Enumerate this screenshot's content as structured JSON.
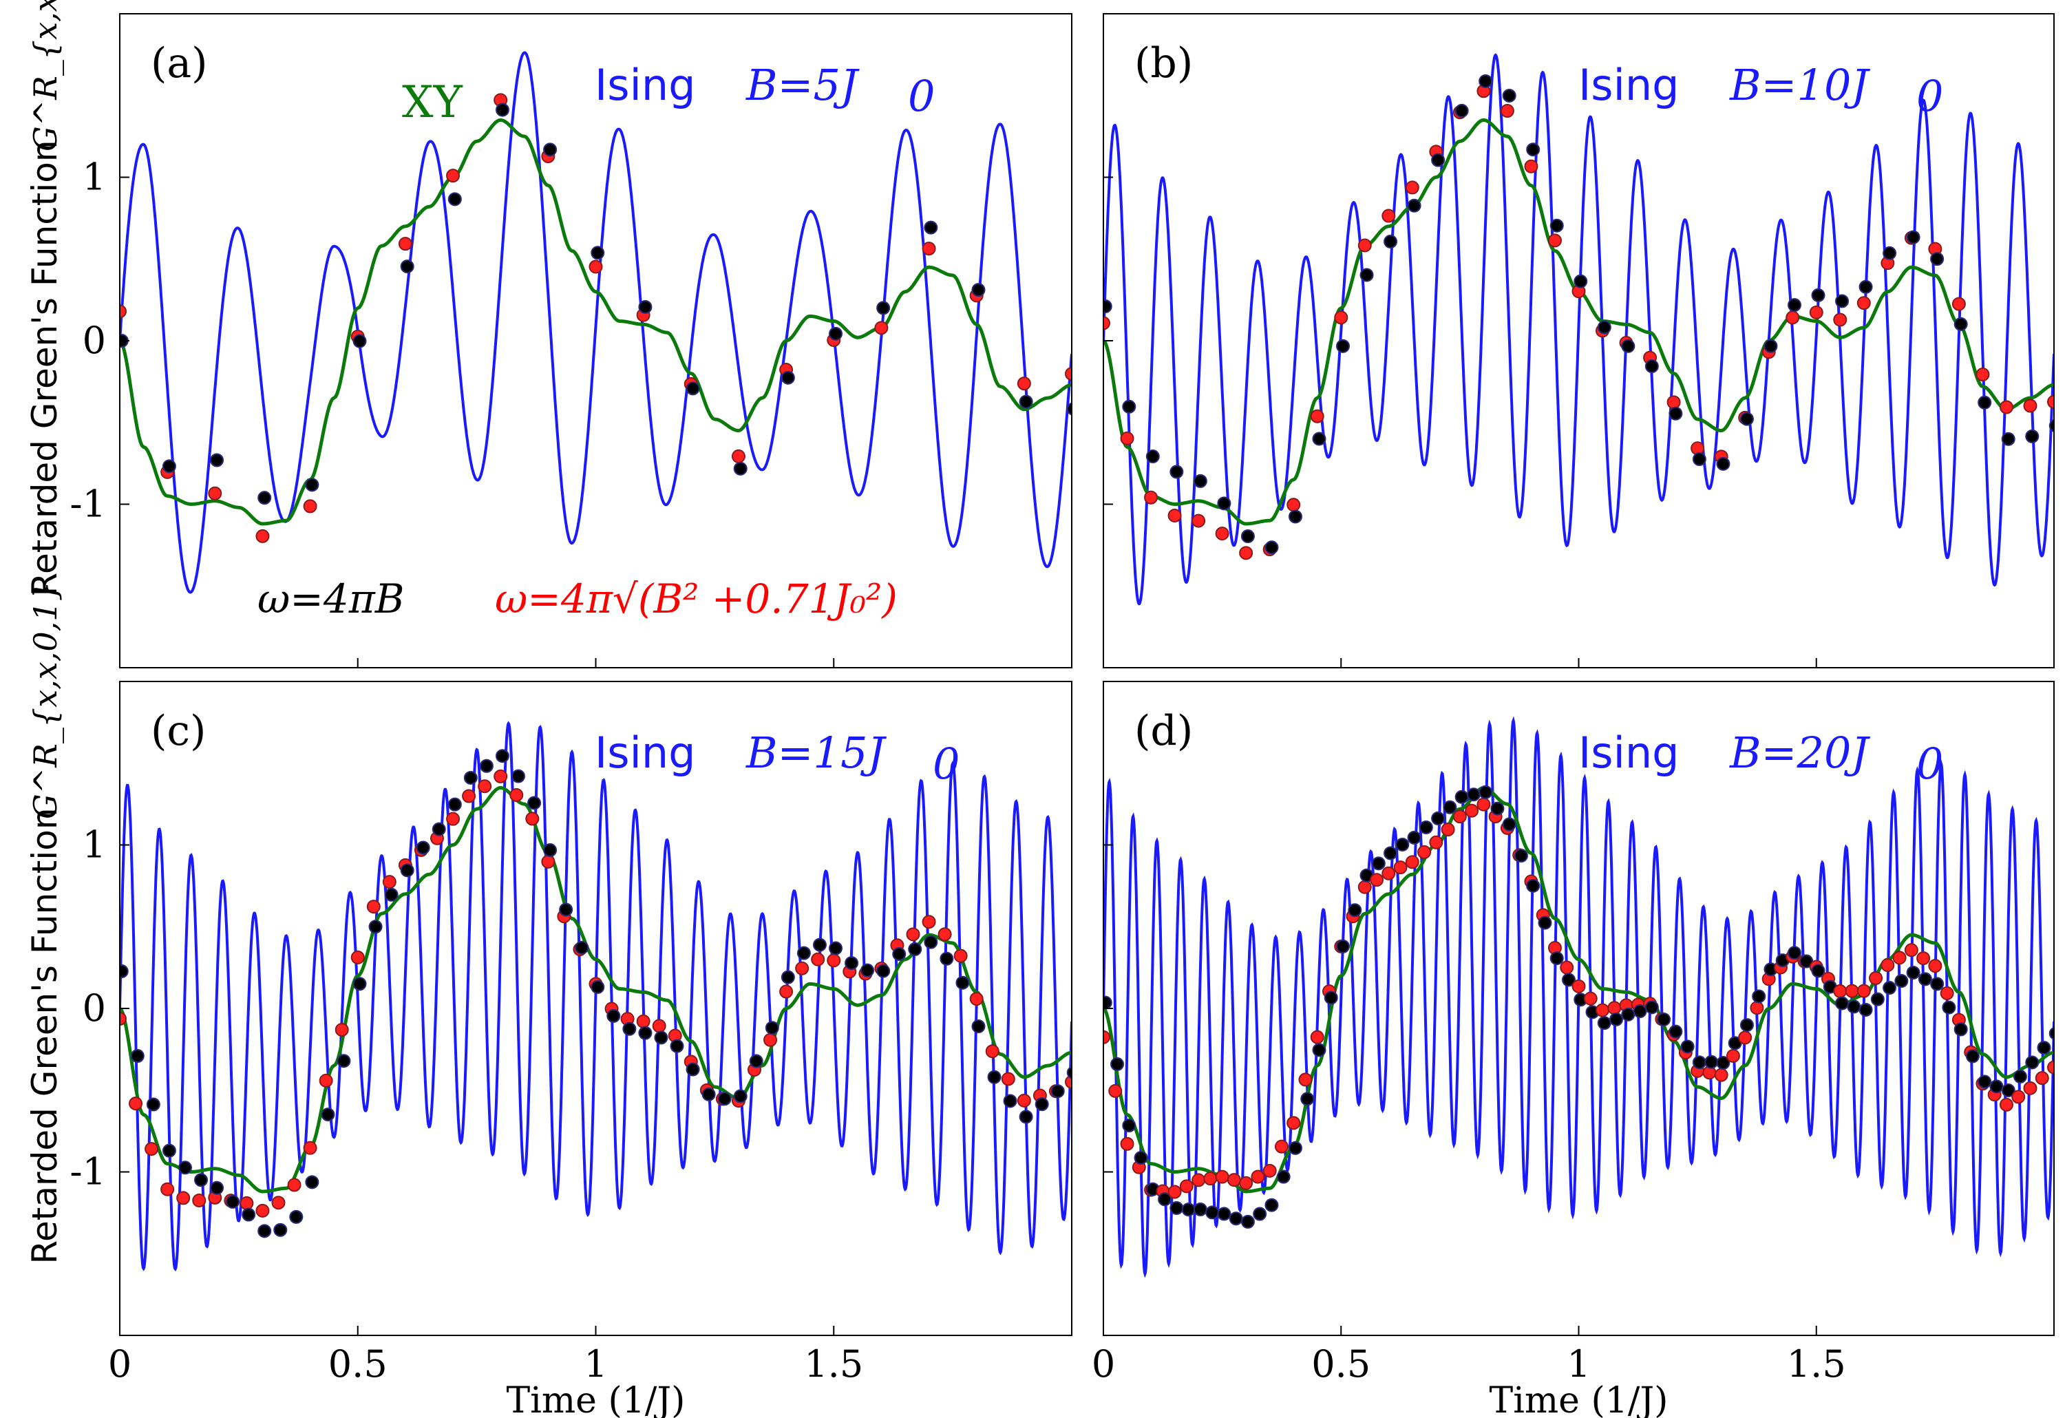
{
  "chart_data": {
    "type": "line",
    "ylabel": "Retarded Green's Function",
    "ylabel_math": "G^R_{x,x,0,1}",
    "xlabel": "Time",
    "xlabel_unit": "(1/J)",
    "xlim": [
      0,
      2.0
    ],
    "ylim": [
      -2.0,
      2.0
    ],
    "x_ticks": [
      "0",
      "0.5",
      "1",
      "1.5"
    ],
    "x_tick_values": [
      0,
      0.5,
      1,
      1.5
    ],
    "y_ticks": [
      "1",
      "0",
      "-1"
    ],
    "y_tick_values": [
      1,
      0,
      -1
    ],
    "xy_curve": {
      "name": "XY",
      "color": "#0a7a0a",
      "x": [
        0,
        0.05,
        0.1,
        0.15,
        0.2,
        0.25,
        0.3,
        0.35,
        0.4,
        0.45,
        0.5,
        0.55,
        0.6,
        0.65,
        0.7,
        0.75,
        0.8,
        0.85,
        0.9,
        0.95,
        1.0,
        1.05,
        1.1,
        1.15,
        1.2,
        1.25,
        1.3,
        1.35,
        1.4,
        1.45,
        1.5,
        1.55,
        1.6,
        1.65,
        1.7,
        1.75,
        1.8,
        1.85,
        1.9,
        1.95,
        2.0
      ],
      "y": [
        0,
        -0.65,
        -0.95,
        -1.0,
        -0.98,
        -1.02,
        -1.12,
        -1.1,
        -0.85,
        -0.35,
        0.2,
        0.58,
        0.7,
        0.82,
        1.0,
        1.22,
        1.35,
        1.25,
        0.95,
        0.55,
        0.3,
        0.12,
        0.1,
        0.05,
        -0.2,
        -0.48,
        -0.55,
        -0.35,
        0.0,
        0.15,
        0.12,
        0.02,
        0.08,
        0.3,
        0.45,
        0.4,
        0.1,
        -0.28,
        -0.42,
        -0.35,
        -0.27
      ]
    },
    "ising_color": "#1a1aff",
    "approx_colors": {
      "black": "#000000",
      "red": "#ff2020"
    },
    "panels": [
      {
        "tag": "(a)",
        "series_label": "Ising",
        "B_label": "B=5J",
        "B_over_J": 5,
        "xy_label": "XY",
        "omega_black": "ω=4πB",
        "omega_red": "ω=4π√(B² +0.71J₀²)"
      },
      {
        "tag": "(b)",
        "series_label": "Ising",
        "B_label": "B=10J",
        "B_over_J": 10
      },
      {
        "tag": "(c)",
        "series_label": "Ising",
        "B_label": "B=15J",
        "B_over_J": 15
      },
      {
        "tag": "(d)",
        "series_label": "Ising",
        "B_label": "B=20J",
        "B_over_J": 20
      }
    ]
  }
}
